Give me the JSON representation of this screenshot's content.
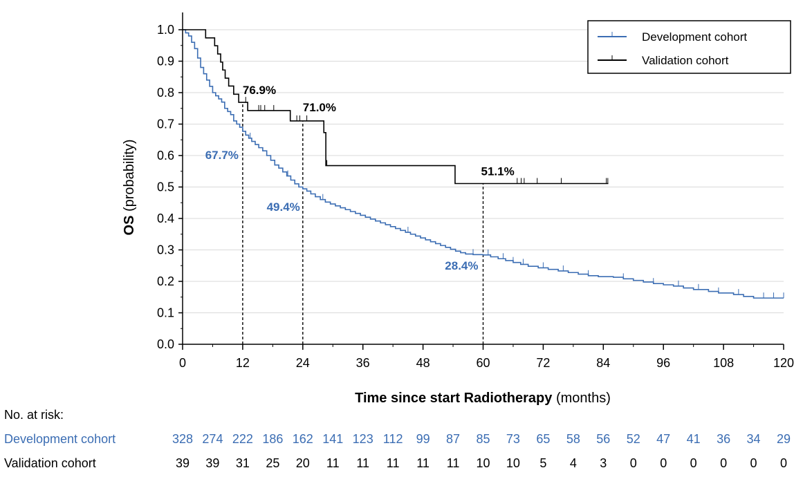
{
  "chart_data": {
    "type": "line",
    "subtype": "kaplan-meier",
    "xlabel_bold": "Time since start Radiotherapy",
    "xlabel_rest": " (months)",
    "ylabel_bold": "OS",
    "ylabel_rest": " (probability)",
    "xlim": [
      0,
      120
    ],
    "ylim": [
      0,
      1.0
    ],
    "xticks": [
      0,
      12,
      24,
      36,
      48,
      60,
      72,
      84,
      96,
      108,
      120
    ],
    "yticks": [
      "0.0",
      "0.1",
      "0.2",
      "0.3",
      "0.4",
      "0.5",
      "0.6",
      "0.7",
      "0.8",
      "0.9",
      "1.0"
    ],
    "grid": "horizontal",
    "legend_position": "top-right",
    "series": [
      {
        "name": "Development cohort",
        "color": "#3b6db3",
        "steps": [
          [
            0,
            1.0
          ],
          [
            0.6,
            0.99
          ],
          [
            1.2,
            0.98
          ],
          [
            1.8,
            0.96
          ],
          [
            2.4,
            0.94
          ],
          [
            3,
            0.91
          ],
          [
            3.6,
            0.88
          ],
          [
            4.2,
            0.86
          ],
          [
            4.8,
            0.84
          ],
          [
            5.4,
            0.82
          ],
          [
            6,
            0.8
          ],
          [
            6.6,
            0.79
          ],
          [
            7.2,
            0.78
          ],
          [
            7.8,
            0.77
          ],
          [
            8.4,
            0.75
          ],
          [
            9,
            0.74
          ],
          [
            9.6,
            0.73
          ],
          [
            10.2,
            0.71
          ],
          [
            10.8,
            0.7
          ],
          [
            11.4,
            0.69
          ],
          [
            12,
            0.677
          ],
          [
            12.6,
            0.665
          ],
          [
            13.2,
            0.655
          ],
          [
            13.8,
            0.645
          ],
          [
            14.5,
            0.635
          ],
          [
            15.2,
            0.625
          ],
          [
            16,
            0.615
          ],
          [
            16.8,
            0.6
          ],
          [
            17.6,
            0.585
          ],
          [
            18.4,
            0.57
          ],
          [
            19.2,
            0.56
          ],
          [
            20,
            0.548
          ],
          [
            20.8,
            0.535
          ],
          [
            21.6,
            0.522
          ],
          [
            22.4,
            0.51
          ],
          [
            23.2,
            0.5
          ],
          [
            24,
            0.494
          ],
          [
            24.8,
            0.487
          ],
          [
            25.6,
            0.478
          ],
          [
            26.5,
            0.469
          ],
          [
            27.5,
            0.46
          ],
          [
            28.5,
            0.452
          ],
          [
            29.5,
            0.446
          ],
          [
            30.5,
            0.44
          ],
          [
            31.5,
            0.434
          ],
          [
            32.5,
            0.428
          ],
          [
            33.5,
            0.422
          ],
          [
            34.5,
            0.416
          ],
          [
            35.5,
            0.41
          ],
          [
            36.5,
            0.404
          ],
          [
            37.5,
            0.398
          ],
          [
            38.5,
            0.392
          ],
          [
            39.5,
            0.386
          ],
          [
            40.5,
            0.38
          ],
          [
            41.5,
            0.374
          ],
          [
            42.5,
            0.368
          ],
          [
            43.5,
            0.362
          ],
          [
            44.5,
            0.356
          ],
          [
            45.5,
            0.35
          ],
          [
            46.5,
            0.344
          ],
          [
            47.5,
            0.338
          ],
          [
            48.5,
            0.332
          ],
          [
            49.5,
            0.326
          ],
          [
            50.5,
            0.32
          ],
          [
            51.5,
            0.314
          ],
          [
            52.5,
            0.308
          ],
          [
            53.5,
            0.302
          ],
          [
            54.5,
            0.296
          ],
          [
            55.5,
            0.291
          ],
          [
            56.5,
            0.287
          ],
          [
            58,
            0.285
          ],
          [
            60,
            0.284
          ],
          [
            61.5,
            0.278
          ],
          [
            63,
            0.272
          ],
          [
            64.5,
            0.266
          ],
          [
            66,
            0.26
          ],
          [
            67.5,
            0.254
          ],
          [
            69,
            0.248
          ],
          [
            71,
            0.243
          ],
          [
            73,
            0.238
          ],
          [
            75,
            0.233
          ],
          [
            77,
            0.228
          ],
          [
            79,
            0.223
          ],
          [
            81,
            0.218
          ],
          [
            83,
            0.215
          ],
          [
            86,
            0.213
          ],
          [
            88,
            0.208
          ],
          [
            90,
            0.203
          ],
          [
            92,
            0.198
          ],
          [
            94,
            0.193
          ],
          [
            96,
            0.189
          ],
          [
            98,
            0.185
          ],
          [
            100,
            0.179
          ],
          [
            102,
            0.174
          ],
          [
            105,
            0.168
          ],
          [
            107,
            0.163
          ],
          [
            110,
            0.158
          ],
          [
            112,
            0.152
          ],
          [
            114,
            0.147
          ],
          [
            120,
            0.147
          ]
        ],
        "censor_times": [
          13.5,
          21,
          28,
          45,
          58,
          61,
          64,
          66,
          68,
          72,
          76,
          81,
          88,
          94,
          99,
          103,
          107,
          111,
          116,
          118,
          120
        ]
      },
      {
        "name": "Validation cohort",
        "color": "#000000",
        "steps": [
          [
            0,
            1.0
          ],
          [
            4.6,
            0.974
          ],
          [
            6.4,
            0.949
          ],
          [
            7,
            0.923
          ],
          [
            7.6,
            0.897
          ],
          [
            8,
            0.872
          ],
          [
            8.5,
            0.846
          ],
          [
            9.2,
            0.821
          ],
          [
            10.2,
            0.795
          ],
          [
            11.2,
            0.769
          ],
          [
            13,
            0.743
          ],
          [
            21.5,
            0.71
          ],
          [
            28.2,
            0.673
          ],
          [
            28.6,
            0.568
          ],
          [
            54.4,
            0.511
          ],
          [
            85,
            0.511
          ]
        ],
        "censor_times": [
          12.6,
          15.2,
          15.6,
          16.4,
          18.2,
          22.8,
          23.4,
          24.8,
          28.8,
          66.8,
          67.6,
          68.2,
          70.8,
          75.6,
          84.6,
          84.9
        ]
      }
    ],
    "reference_times": [
      12,
      24,
      60
    ],
    "annotations": [
      {
        "text": "76.9%",
        "x": 12,
        "y": 0.769,
        "series": "Validation cohort"
      },
      {
        "text": "71.0%",
        "x": 24,
        "y": 0.71,
        "series": "Validation cohort"
      },
      {
        "text": "51.1%",
        "x": 60,
        "y": 0.511,
        "series": "Validation cohort"
      },
      {
        "text": "67.7%",
        "x": 12,
        "y": 0.677,
        "series": "Development cohort"
      },
      {
        "text": "49.4%",
        "x": 24,
        "y": 0.494,
        "series": "Development cohort"
      },
      {
        "text": "28.4%",
        "x": 60,
        "y": 0.284,
        "series": "Development cohort"
      }
    ]
  },
  "risk_table": {
    "title": "No. at risk:",
    "rows": [
      {
        "name": "Development cohort",
        "color": "#3b6db3",
        "values": [
          "328",
          "274",
          "222",
          "186",
          "162",
          "141",
          "123",
          "112",
          "99",
          "87",
          "85",
          "73",
          "65",
          "58",
          "56",
          "52",
          "47",
          "41",
          "36",
          "34",
          "29"
        ]
      },
      {
        "name": "Validation cohort",
        "color": "#000000",
        "values": [
          "39",
          "39",
          "31",
          "25",
          "20",
          "11",
          "11",
          "11",
          "11",
          "11",
          "10",
          "10",
          "5",
          "4",
          "3",
          "0",
          "0",
          "0",
          "0",
          "0",
          "0"
        ]
      }
    ]
  }
}
